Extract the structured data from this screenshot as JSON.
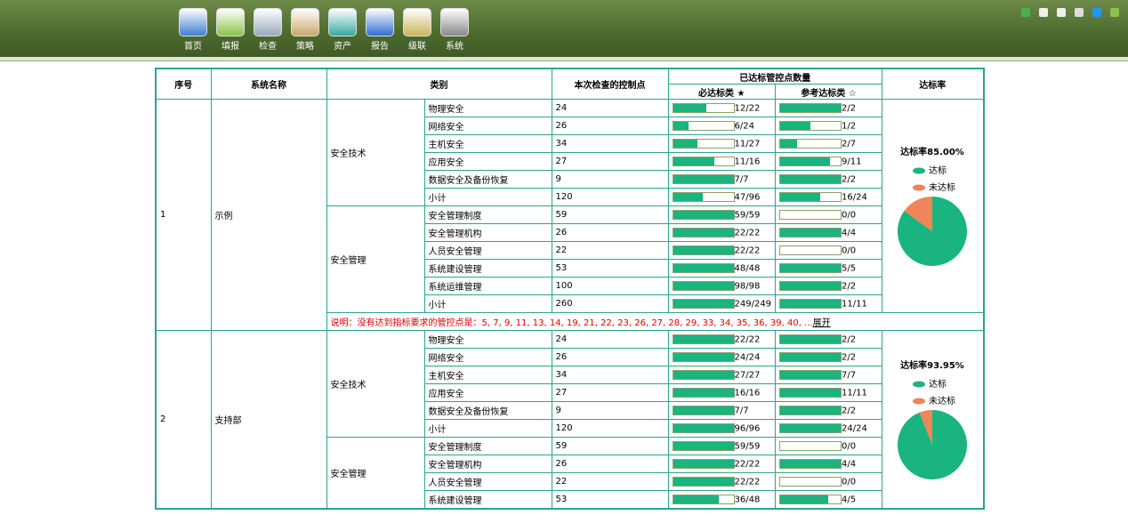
{
  "nav": [
    "首页",
    "填报",
    "检查",
    "策略",
    "资产",
    "报告",
    "级联",
    "系统"
  ],
  "table": {
    "headers": {
      "index": "序号",
      "name": "系统名称",
      "category": "类别",
      "checked": "本次检查的控制点",
      "passed": "已达标管控点数量",
      "required": "必达标类 ★",
      "reference": "参考达标类 ☆",
      "rate": "达标率"
    },
    "groups": [
      {
        "index": "1",
        "name": "示例",
        "sections": [
          {
            "category": "安全技术",
            "rows": [
              {
                "item": "物理安全",
                "count": "24",
                "required": "12/22",
                "reference": "2/2"
              },
              {
                "item": "网络安全",
                "count": "26",
                "required": "6/24",
                "reference": "1/2"
              },
              {
                "item": "主机安全",
                "count": "34",
                "required": "11/27",
                "reference": "2/7"
              },
              {
                "item": "应用安全",
                "count": "27",
                "required": "11/16",
                "reference": "9/11"
              },
              {
                "item": "数据安全及备份恢复",
                "count": "9",
                "required": "7/7",
                "reference": "2/2"
              },
              {
                "item": "小计",
                "count": "120",
                "required": "47/96",
                "reference": "16/24"
              }
            ]
          },
          {
            "category": "安全管理",
            "rows": [
              {
                "item": "安全管理制度",
                "count": "59",
                "required": "59/59",
                "reference": "0/0"
              },
              {
                "item": "安全管理机构",
                "count": "26",
                "required": "22/22",
                "reference": "4/4"
              },
              {
                "item": "人员安全管理",
                "count": "22",
                "required": "22/22",
                "reference": "0/0"
              },
              {
                "item": "系统建设管理",
                "count": "53",
                "required": "48/48",
                "reference": "5/5"
              },
              {
                "item": "系统运维管理",
                "count": "100",
                "required": "98/98",
                "reference": "2/2"
              },
              {
                "item": "小计",
                "count": "260",
                "required": "249/249",
                "reference": "11/11"
              }
            ]
          }
        ],
        "note": "说明：没有达到指标要求的管控点是：5, 7, 9, 11, 13, 14, 19, 21, 22, 23, 26, 27, 28, 29, 33, 34, 35, 36, 39, 40, ...",
        "note_link": "展开",
        "rate": {
          "title": "达标率85.00%",
          "legend": [
            "达标",
            "未达标"
          ],
          "values": [
            85,
            15
          ]
        }
      },
      {
        "index": "2",
        "name": "支持部",
        "sections": [
          {
            "category": "安全技术",
            "rows": [
              {
                "item": "物理安全",
                "count": "24",
                "required": "22/22",
                "reference": "2/2"
              },
              {
                "item": "网络安全",
                "count": "26",
                "required": "24/24",
                "reference": "2/2"
              },
              {
                "item": "主机安全",
                "count": "34",
                "required": "27/27",
                "reference": "7/7"
              },
              {
                "item": "应用安全",
                "count": "27",
                "required": "16/16",
                "reference": "11/11"
              },
              {
                "item": "数据安全及备份恢复",
                "count": "9",
                "required": "7/7",
                "reference": "2/2"
              },
              {
                "item": "小计",
                "count": "120",
                "required": "96/96",
                "reference": "24/24"
              }
            ]
          },
          {
            "category": "安全管理",
            "rows": [
              {
                "item": "安全管理制度",
                "count": "59",
                "required": "59/59",
                "reference": "0/0"
              },
              {
                "item": "安全管理机构",
                "count": "26",
                "required": "22/22",
                "reference": "4/4"
              },
              {
                "item": "人员安全管理",
                "count": "22",
                "required": "22/22",
                "reference": "0/0"
              },
              {
                "item": "系统建设管理",
                "count": "53",
                "required": "36/48",
                "reference": "4/5"
              }
            ]
          }
        ],
        "rate": {
          "title": "达标率93.95%",
          "legend": [
            "达标",
            "未达标"
          ],
          "values": [
            93.95,
            6.05
          ]
        }
      }
    ]
  }
}
